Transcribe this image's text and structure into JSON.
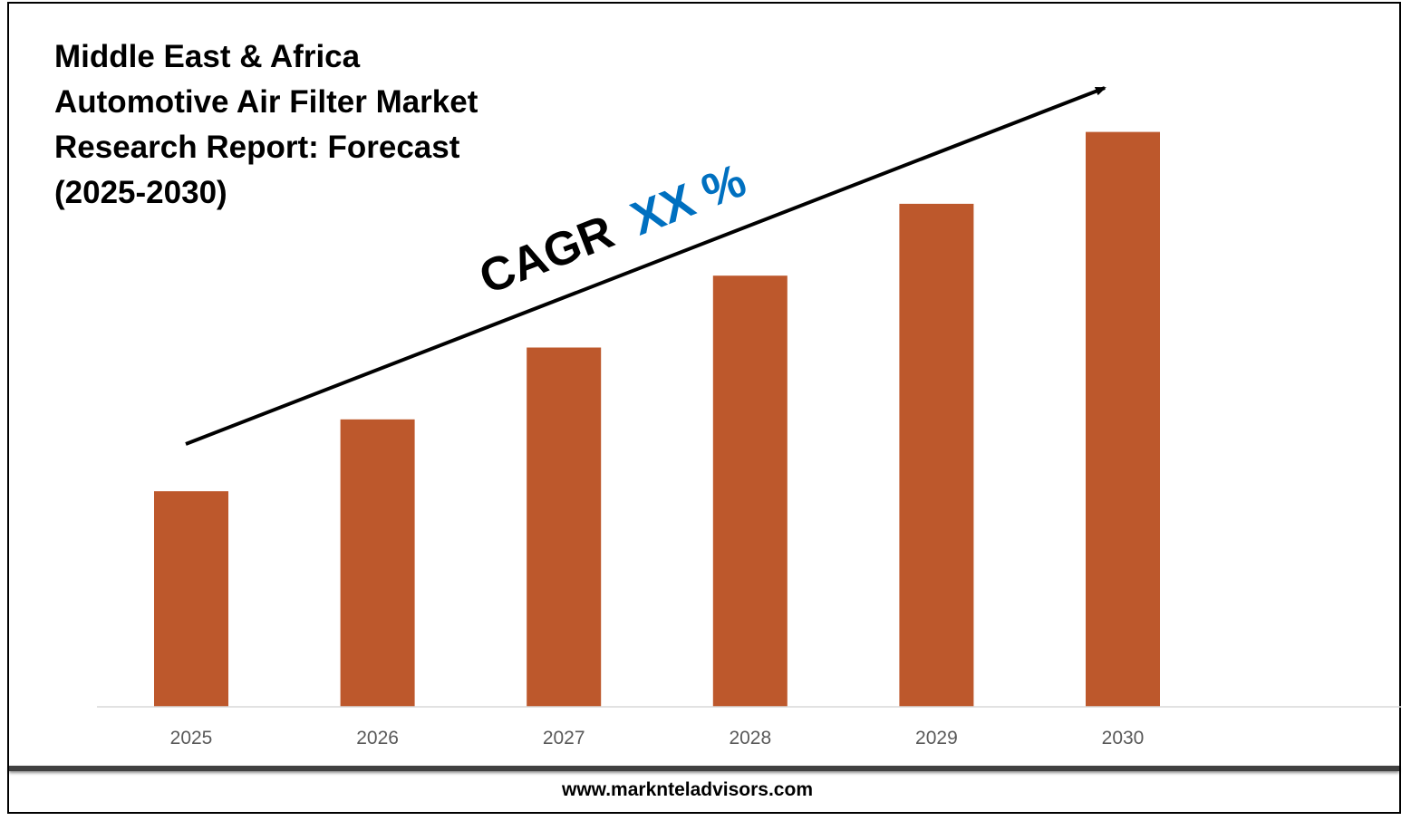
{
  "chart_data": {
    "type": "bar",
    "title_lines": [
      "Middle East & Africa",
      "Automotive Air Filter Market",
      "Research Report: Forecast",
      "(2025-2030)"
    ],
    "categories": [
      "2025",
      "2026",
      "2027",
      "2028",
      "2029",
      "2030"
    ],
    "values": [
      30,
      40,
      50,
      60,
      70,
      80
    ],
    "ylim": [
      0,
      100
    ],
    "bar_color": "#BD582C",
    "xlabel": "",
    "ylabel": "",
    "grid": false,
    "annotation": {
      "prefix": "CAGR",
      "value": "XX %",
      "prefix_color": "#000000",
      "value_color": "#0070C0"
    }
  },
  "footer": {
    "website": "www.marknteladvisors.com"
  }
}
